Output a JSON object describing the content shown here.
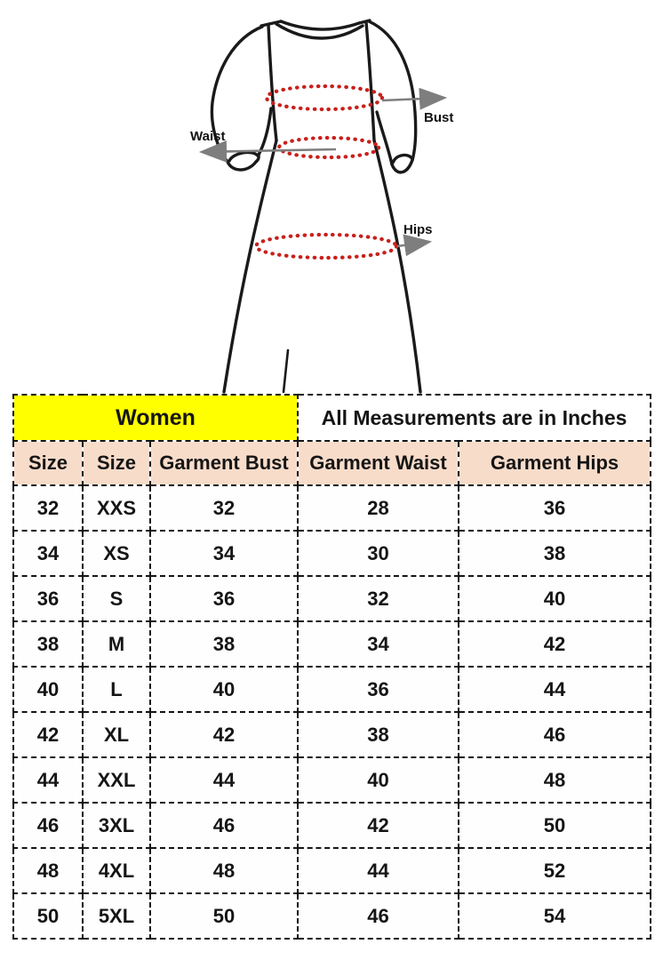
{
  "colors": {
    "women_header_bg": "#ffff00",
    "column_header_bg": "#f8dcca",
    "table_border": "#141414",
    "measure_dot_red": "#c8201c",
    "arrow_gray": "#7e7e7e",
    "dress_outline": "#1a1a1a"
  },
  "diagram": {
    "bust_label": "Bust",
    "waist_label": "Waist",
    "hips_label": "Hips"
  },
  "size_chart": {
    "group_headers": [
      {
        "label": "Women"
      },
      {
        "label": "All Measurements are in Inches"
      }
    ],
    "columns": [
      "Size",
      "Size",
      "Garment Bust",
      "Garment Waist",
      "Garment Hips"
    ],
    "rows": [
      [
        "32",
        "XXS",
        "32",
        "28",
        "36"
      ],
      [
        "34",
        "XS",
        "34",
        "30",
        "38"
      ],
      [
        "36",
        "S",
        "36",
        "32",
        "40"
      ],
      [
        "38",
        "M",
        "38",
        "34",
        "42"
      ],
      [
        "40",
        "L",
        "40",
        "36",
        "44"
      ],
      [
        "42",
        "XL",
        "42",
        "38",
        "46"
      ],
      [
        "44",
        "XXL",
        "44",
        "40",
        "48"
      ],
      [
        "46",
        "3XL",
        "46",
        "42",
        "50"
      ],
      [
        "48",
        "4XL",
        "48",
        "44",
        "52"
      ],
      [
        "50",
        "5XL",
        "50",
        "46",
        "54"
      ]
    ]
  }
}
